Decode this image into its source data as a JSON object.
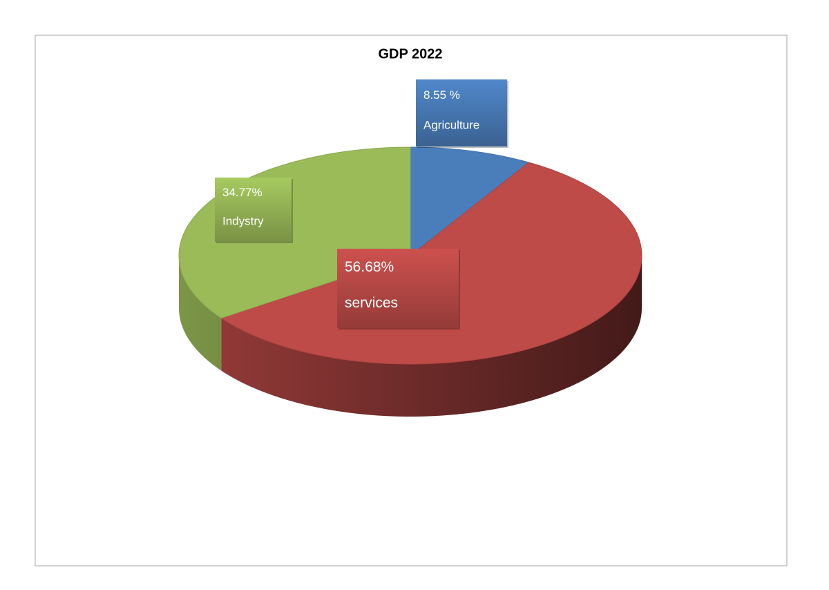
{
  "chart_data": {
    "type": "pie3d",
    "title": "GDP 2022",
    "categories": [
      "Agriculture",
      "services",
      "Indystry"
    ],
    "values": [
      8.55,
      56.68,
      34.77
    ],
    "value_labels": [
      "8.55 %",
      "56.68%",
      "34.77%"
    ],
    "colors": [
      "#4a7ebb",
      "#be4b48",
      "#9bbb59"
    ]
  }
}
